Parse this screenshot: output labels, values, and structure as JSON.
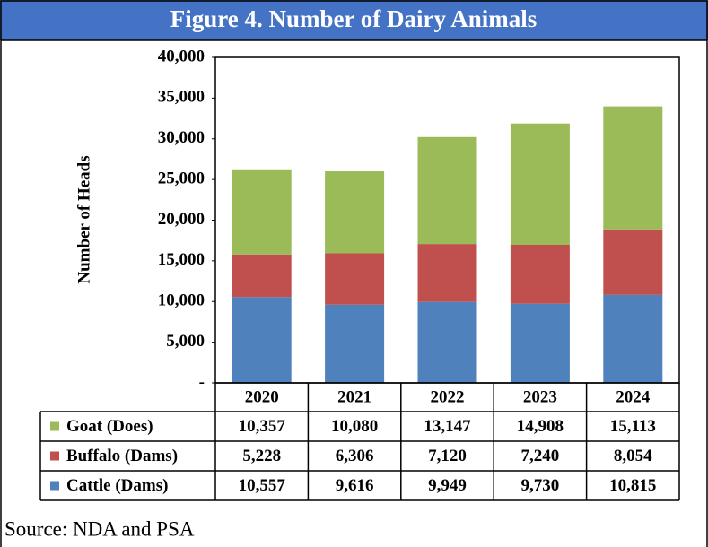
{
  "chart_data": {
    "type": "stacked_bar",
    "title": "Figure 4. Number of Dairy Animals",
    "y_label": "Number of Heads",
    "source": "Source: NDA and PSA",
    "categories": [
      "2020",
      "2021",
      "2022",
      "2023",
      "2024"
    ],
    "series": [
      {
        "name": "Cattle (Dams)",
        "color": "#4f81bd",
        "values": [
          10557,
          9616,
          9949,
          9730,
          10815
        ],
        "value_labels": [
          "10,557",
          "9,616",
          "9,949",
          "9,730",
          "10,815"
        ]
      },
      {
        "name": "Buffalo (Dams)",
        "color": "#c0504d",
        "values": [
          5228,
          6306,
          7120,
          7240,
          8054
        ],
        "value_labels": [
          "5,228",
          "6,306",
          "7,120",
          "7,240",
          "8,054"
        ]
      },
      {
        "name": "Goat (Does)",
        "color": "#9bbb59",
        "values": [
          10357,
          10080,
          13147,
          14908,
          15113
        ],
        "value_labels": [
          "10,357",
          "10,080",
          "13,147",
          "14,908",
          "15,113"
        ]
      }
    ],
    "ylim": [
      0,
      40000
    ],
    "yticks": [
      {
        "value": 0,
        "label": "-"
      },
      {
        "value": 5000,
        "label": "5,000"
      },
      {
        "value": 10000,
        "label": "10,000"
      },
      {
        "value": 15000,
        "label": "15,000"
      },
      {
        "value": 20000,
        "label": "20,000"
      },
      {
        "value": 25000,
        "label": "25,000"
      },
      {
        "value": 30000,
        "label": "30,000"
      },
      {
        "value": 35000,
        "label": "35,000"
      },
      {
        "value": 40000,
        "label": "40,000"
      }
    ],
    "title_bar_color": "#4472c4"
  }
}
